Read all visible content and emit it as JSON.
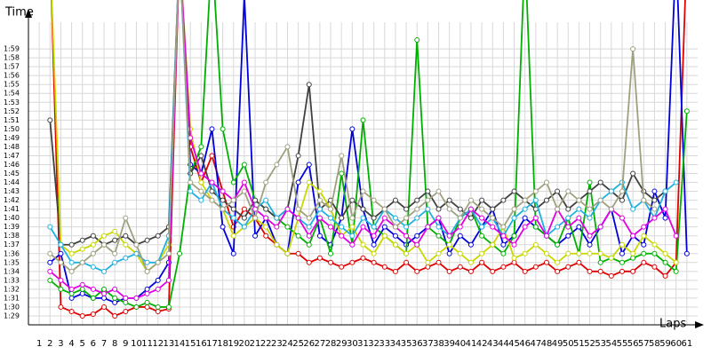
{
  "chart_data": {
    "type": "line",
    "y_label": "Time",
    "x_label": "Laps",
    "x": [
      1,
      2,
      3,
      4,
      5,
      6,
      7,
      8,
      9,
      10,
      11,
      12,
      13,
      14,
      15,
      16,
      17,
      18,
      19,
      20,
      21,
      22,
      23,
      24,
      25,
      26,
      27,
      28,
      29,
      30,
      31,
      32,
      33,
      34,
      35,
      36,
      37,
      38,
      39,
      40,
      41,
      42,
      43,
      44,
      45,
      46,
      47,
      48,
      49,
      50,
      51,
      52,
      53,
      54,
      55,
      56,
      57,
      58,
      59,
      60,
      61
    ],
    "xlim": [
      0,
      62
    ],
    "xticks": [
      1,
      2,
      3,
      4,
      5,
      6,
      7,
      8,
      9,
      10,
      11,
      12,
      13,
      14,
      15,
      16,
      17,
      18,
      19,
      20,
      21,
      22,
      23,
      24,
      25,
      26,
      27,
      28,
      29,
      30,
      31,
      32,
      33,
      34,
      35,
      36,
      37,
      38,
      39,
      40,
      41,
      42,
      43,
      44,
      45,
      46,
      47,
      48,
      49,
      50,
      51,
      52,
      53,
      54,
      55,
      56,
      57,
      58,
      59,
      60,
      61
    ],
    "ylim": [
      88,
      122
    ],
    "yticks": [
      {
        "value": 89,
        "label": "1:29"
      },
      {
        "value": 90,
        "label": "1:30"
      },
      {
        "value": 91,
        "label": "1:31"
      },
      {
        "value": 92,
        "label": "1:32"
      },
      {
        "value": 93,
        "label": "1:33"
      },
      {
        "value": 94,
        "label": "1:34"
      },
      {
        "value": 95,
        "label": "1:35"
      },
      {
        "value": 96,
        "label": "1:36"
      },
      {
        "value": 97,
        "label": "1:37"
      },
      {
        "value": 98,
        "label": "1:38"
      },
      {
        "value": 99,
        "label": "1:39"
      },
      {
        "value": 100,
        "label": "1:40"
      },
      {
        "value": 101,
        "label": "1:41"
      },
      {
        "value": 102,
        "label": "1:42"
      },
      {
        "value": 103,
        "label": "1:43"
      },
      {
        "value": 104,
        "label": "1:44"
      },
      {
        "value": 105,
        "label": "1:45"
      },
      {
        "value": 106,
        "label": "1:46"
      },
      {
        "value": 107,
        "label": "1:47"
      },
      {
        "value": 108,
        "label": "1:48"
      },
      {
        "value": 109,
        "label": "1:49"
      },
      {
        "value": 110,
        "label": "1:50"
      },
      {
        "value": 111,
        "label": "1:51"
      },
      {
        "value": 112,
        "label": "1:52"
      },
      {
        "value": 113,
        "label": "1:53"
      },
      {
        "value": 114,
        "label": "1:54"
      },
      {
        "value": 115,
        "label": "1:55"
      },
      {
        "value": 116,
        "label": "1:56"
      },
      {
        "value": 117,
        "label": "1:57"
      },
      {
        "value": 118,
        "label": "1:58"
      },
      {
        "value": 119,
        "label": "1:59"
      }
    ],
    "grid": true,
    "series": [
      {
        "color": "#e00000",
        "values": [
          null,
          130,
          90,
          89.5,
          89,
          89.2,
          90,
          89,
          89.5,
          90,
          90,
          89.5,
          89.8,
          130,
          108,
          104,
          107,
          103,
          99,
          101,
          100,
          98,
          97,
          96,
          96,
          95,
          95.5,
          95,
          94.5,
          95,
          95.5,
          95,
          94.5,
          94,
          95,
          94,
          94.5,
          95,
          94,
          94.5,
          94,
          95,
          94,
          94.5,
          95,
          94,
          94.5,
          95,
          94,
          94.5,
          95,
          94,
          94,
          93.5,
          94,
          94,
          95,
          94.5,
          93.5,
          95,
          130
        ]
      },
      {
        "color": "#0000dd",
        "values": [
          null,
          95,
          96,
          91,
          91.5,
          91,
          91,
          90.5,
          91,
          91,
          92,
          93,
          95,
          130,
          106,
          105,
          110,
          99,
          96,
          125,
          98,
          100,
          97,
          96,
          104,
          106,
          98,
          97,
          100,
          110,
          101,
          97,
          99,
          98,
          97,
          98,
          99,
          100,
          96,
          98,
          97,
          99,
          101,
          97,
          98,
          100,
          99,
          98,
          97,
          98,
          99,
          97,
          99,
          101,
          96,
          98,
          97,
          103,
          100,
          130,
          96
        ]
      },
      {
        "color": "#00b000",
        "values": [
          null,
          93,
          92,
          91.5,
          92,
          91,
          92,
          91,
          90.5,
          90,
          90.5,
          90,
          90,
          96,
          105,
          108,
          130,
          110,
          104,
          106,
          102,
          101,
          100,
          99,
          98,
          97,
          100,
          96,
          105,
          97,
          111,
          99,
          98,
          97,
          96,
          120,
          99,
          98,
          97,
          100,
          101,
          98,
          97,
          96,
          98,
          130,
          99,
          98,
          97,
          100,
          96,
          104,
          95,
          95.5,
          95,
          95.5,
          96,
          96,
          95,
          94,
          112
        ]
      },
      {
        "color": "#404040",
        "values": [
          null,
          111,
          97,
          97,
          97.5,
          98,
          97,
          97.5,
          98,
          97,
          97.5,
          98,
          99,
          130,
          105,
          107,
          103,
          102,
          101,
          100,
          102,
          101,
          100,
          101,
          107,
          115,
          101,
          102,
          100,
          102,
          101,
          100,
          101,
          102,
          101,
          102,
          103,
          101,
          102,
          101,
          100,
          102,
          101,
          102,
          103,
          102,
          101,
          102,
          103,
          101,
          102,
          103,
          104,
          103,
          102,
          105,
          103,
          102,
          103,
          null,
          null
        ]
      },
      {
        "color": "#c8d800",
        "values": [
          null,
          130,
          97,
          96,
          96.5,
          97,
          98,
          98.5,
          97,
          96,
          94,
          95,
          97,
          130,
          110,
          104,
          102,
          101,
          98,
          99,
          100,
          99,
          97,
          96,
          100,
          104,
          103,
          101,
          98,
          99,
          97,
          96,
          98,
          97,
          96,
          97,
          95,
          96,
          97,
          96,
          95,
          96,
          97,
          99,
          95.5,
          96,
          97,
          96,
          95,
          96,
          96,
          96,
          96,
          95.5,
          97,
          96,
          98,
          97,
          96,
          95,
          null
        ]
      },
      {
        "color": "#20b0e0",
        "values": [
          null,
          99,
          97,
          95,
          95,
          94.5,
          94,
          95,
          95.5,
          96,
          95,
          95,
          98,
          130,
          103,
          102,
          104,
          101,
          100,
          99,
          101,
          102,
          100,
          101,
          100,
          99,
          101,
          100,
          99,
          98,
          100,
          99,
          101,
          100,
          99,
          100,
          101,
          99,
          98,
          100,
          101,
          99,
          100,
          98,
          100,
          101,
          102,
          98,
          99,
          100,
          101,
          100,
          102,
          103,
          104,
          101,
          102,
          100,
          103,
          104,
          null
        ]
      },
      {
        "color": "#e000e0",
        "values": [
          null,
          94,
          93,
          92,
          92.5,
          92,
          91.5,
          92,
          91,
          91,
          91.5,
          92,
          93,
          130,
          109,
          105,
          104,
          103,
          102,
          104,
          101,
          100,
          99,
          101,
          100,
          98,
          100,
          99,
          98,
          97,
          99,
          98,
          100,
          99,
          98,
          97,
          99,
          100,
          98,
          99,
          101,
          100,
          99,
          98,
          97,
          99,
          100,
          98,
          101,
          99,
          100,
          98,
          99,
          101,
          100,
          98,
          99,
          100,
          101,
          98,
          null
        ]
      },
      {
        "color": "#a0a080",
        "values": [
          null,
          96,
          95,
          94,
          95,
          96,
          97,
          96,
          100,
          97,
          94,
          95,
          96,
          130,
          104,
          103,
          102,
          101,
          102,
          103,
          100,
          104,
          106,
          108,
          101,
          100,
          102,
          101,
          107,
          100,
          103,
          102,
          101,
          99,
          100,
          101,
          102,
          103,
          101,
          100,
          102,
          101,
          100,
          99,
          101,
          102,
          103,
          104,
          101,
          103,
          102,
          101,
          102,
          101,
          103,
          119,
          102,
          101,
          null,
          null,
          null
        ]
      }
    ]
  }
}
